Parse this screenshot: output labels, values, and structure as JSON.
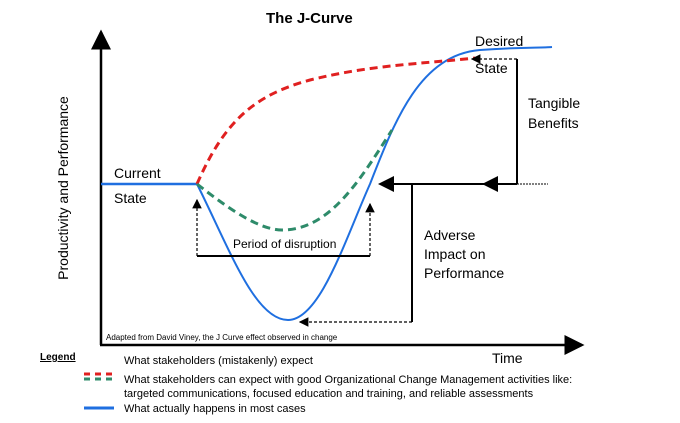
{
  "title": "The J-Curve",
  "y_axis_label": "Productivity and Performance",
  "x_axis_label": "Time",
  "labels": {
    "current": "Current",
    "current_state": "State",
    "desired": "Desired",
    "desired_state": "State",
    "tangible": "Tangible",
    "benefits": "Benefits",
    "adverse1": "Adverse",
    "adverse2": "Impact on",
    "adverse3": "Performance",
    "disruption": "Period of disruption",
    "source": "Adapted from David Viney, the J Curve effect observed in change"
  },
  "legend": {
    "title": "Legend",
    "items": [
      {
        "text": "What stakeholders (mistakenly) expect",
        "color": "#e02020"
      },
      {
        "text": "What stakeholders can expect with good Organizational Change Management activities like:",
        "text2": "targeted communications, focused education and training, and reliable assessments",
        "color": "#2e8b6a"
      },
      {
        "text": "What actually happens in most cases",
        "color": "#1f6fe0"
      }
    ]
  }
}
